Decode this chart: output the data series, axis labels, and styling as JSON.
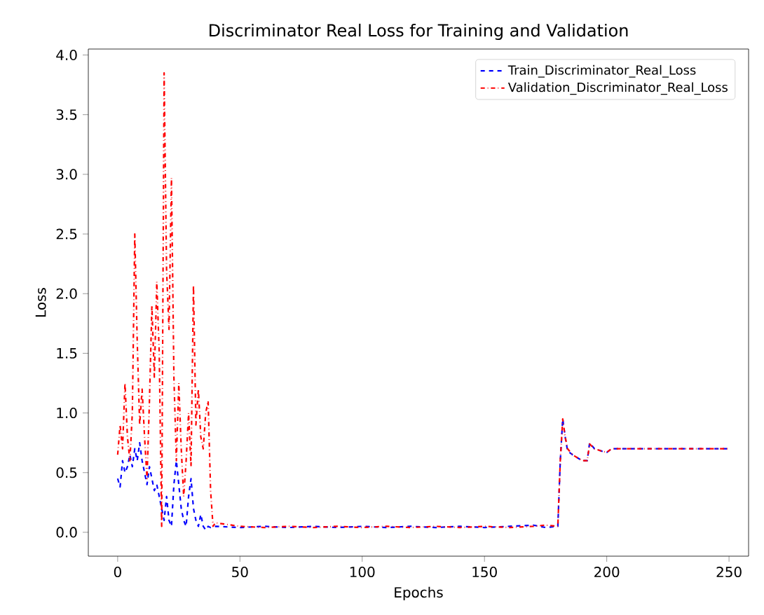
{
  "chart_data": {
    "type": "line",
    "title": "Discriminator Real Loss for Training and Validation",
    "xlabel": "Epochs",
    "ylabel": "Loss",
    "xlim": [
      -12,
      258
    ],
    "ylim": [
      -0.2,
      4.05
    ],
    "xticks": [
      0,
      50,
      100,
      150,
      200,
      250
    ],
    "yticks": [
      {
        "value": 0,
        "label": "0.0"
      },
      {
        "value": 0.5,
        "label": "0.5"
      },
      {
        "value": 1,
        "label": "1.0"
      },
      {
        "value": 1.5,
        "label": "1.5"
      },
      {
        "value": 2,
        "label": "2.0"
      },
      {
        "value": 2.5,
        "label": "2.5"
      },
      {
        "value": 3,
        "label": "3.0"
      },
      {
        "value": 3.5,
        "label": "3.5"
      },
      {
        "value": 4,
        "label": "4.0"
      }
    ],
    "grid": false,
    "legend": "top right",
    "series": [
      {
        "name": "Train_Discriminator_Real_Loss",
        "color": "#0000ff",
        "line_style": "dashed",
        "x": [
          0,
          1,
          2,
          3,
          4,
          5,
          6,
          7,
          8,
          9,
          10,
          11,
          12,
          13,
          14,
          15,
          16,
          17,
          18,
          19,
          20,
          21,
          22,
          23,
          24,
          25,
          26,
          27,
          28,
          29,
          30,
          31,
          32,
          33,
          34,
          35,
          36,
          37,
          38,
          40,
          50,
          60,
          70,
          80,
          90,
          100,
          110,
          120,
          130,
          140,
          150,
          160,
          170,
          175,
          180,
          181,
          182,
          183,
          184,
          186,
          190,
          192,
          193,
          195,
          198,
          200,
          202,
          210,
          230,
          250
        ],
        "values": [
          0.45,
          0.38,
          0.6,
          0.5,
          0.55,
          0.65,
          0.55,
          0.7,
          0.6,
          0.75,
          0.6,
          0.5,
          0.4,
          0.55,
          0.45,
          0.35,
          0.4,
          0.3,
          0.2,
          0.1,
          0.3,
          0.1,
          0.05,
          0.4,
          0.6,
          0.4,
          0.2,
          0.1,
          0.05,
          0.3,
          0.45,
          0.2,
          0.1,
          0.05,
          0.15,
          0.05,
          0.02,
          0.05,
          0.04,
          0.05,
          0.04,
          0.05,
          0.04,
          0.05,
          0.04,
          0.05,
          0.04,
          0.05,
          0.04,
          0.05,
          0.04,
          0.05,
          0.06,
          0.04,
          0.05,
          0.6,
          0.95,
          0.8,
          0.68,
          0.65,
          0.6,
          0.6,
          0.75,
          0.7,
          0.68,
          0.67,
          0.7,
          0.7,
          0.7,
          0.7
        ]
      },
      {
        "name": "Validation_Discriminator_Real_Loss",
        "color": "#ff0000",
        "line_style": "dashdot",
        "x": [
          0,
          1,
          2,
          3,
          4,
          5,
          6,
          7,
          8,
          9,
          10,
          11,
          12,
          13,
          14,
          15,
          16,
          17,
          18,
          19,
          20,
          21,
          22,
          23,
          24,
          25,
          26,
          27,
          28,
          29,
          30,
          31,
          32,
          33,
          34,
          35,
          36,
          37,
          38,
          39,
          40,
          50,
          60,
          70,
          80,
          90,
          100,
          110,
          120,
          130,
          140,
          150,
          160,
          170,
          175,
          180,
          181,
          182,
          183,
          184,
          186,
          190,
          192,
          193,
          195,
          198,
          200,
          202,
          210,
          230,
          250
        ],
        "values": [
          0.65,
          0.9,
          0.7,
          1.25,
          0.8,
          0.6,
          1.0,
          2.5,
          1.6,
          0.9,
          1.2,
          0.8,
          0.45,
          1.1,
          1.9,
          1.3,
          2.1,
          1.5,
          0.05,
          3.85,
          2.2,
          1.7,
          2.97,
          1.3,
          0.6,
          1.25,
          0.7,
          0.3,
          0.6,
          1.0,
          0.55,
          2.07,
          0.9,
          1.2,
          0.8,
          0.7,
          1.0,
          1.1,
          0.35,
          0.05,
          0.08,
          0.05,
          0.04,
          0.05,
          0.04,
          0.05,
          0.04,
          0.05,
          0.04,
          0.05,
          0.04,
          0.05,
          0.04,
          0.05,
          0.06,
          0.05,
          0.6,
          0.95,
          0.8,
          0.7,
          0.65,
          0.6,
          0.6,
          0.74,
          0.7,
          0.68,
          0.67,
          0.7,
          0.7,
          0.7,
          0.7
        ]
      }
    ]
  }
}
